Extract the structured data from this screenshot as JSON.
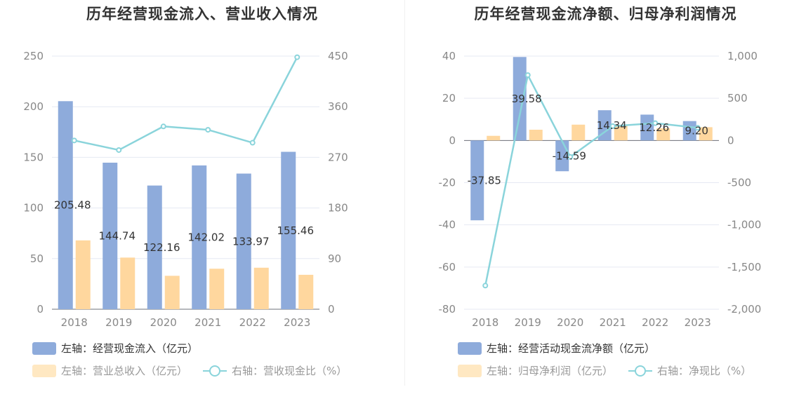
{
  "colors": {
    "bar_primary": "#8eabdb",
    "bar_secondary": "#ffd79e",
    "line": "#8ad4db",
    "axis_text": "#888888",
    "grid": "#e6e9f3",
    "label_text": "#333333"
  },
  "chart_data": [
    {
      "type": "bar",
      "title": "历年经营现金流入、营业收入情况",
      "categories": [
        "2018",
        "2019",
        "2020",
        "2021",
        "2022",
        "2023"
      ],
      "y_left": {
        "ylim": [
          0,
          250
        ],
        "ticks": [
          "0",
          "50",
          "100",
          "150",
          "200",
          "250"
        ]
      },
      "y_right": {
        "ylim": [
          0,
          450
        ],
        "ticks": [
          "0",
          "90",
          "180",
          "270",
          "360",
          "450"
        ]
      },
      "series": [
        {
          "name": "左轴：经营现金流入（亿元）",
          "kind": "bar",
          "axis": "left",
          "values": [
            205.48,
            144.74,
            122.16,
            142.02,
            133.97,
            155.46
          ],
          "labels": [
            "205.48",
            "144.74",
            "122.16",
            "142.02",
            "133.97",
            "155.46"
          ]
        },
        {
          "name": "左轴：营业总收入（亿元）",
          "kind": "bar",
          "axis": "left",
          "values": [
            68,
            51,
            33,
            40,
            41,
            34
          ]
        },
        {
          "name": "右轴：营收现金比（%）",
          "kind": "line",
          "axis": "right",
          "values": [
            300,
            283,
            325,
            319,
            296,
            448
          ]
        }
      ]
    },
    {
      "type": "bar",
      "title": "历年经营现金流净额、归母净利润情况",
      "categories": [
        "2018",
        "2019",
        "2020",
        "2021",
        "2022",
        "2023"
      ],
      "y_left": {
        "ylim": [
          -80,
          40
        ],
        "ticks": [
          "-80",
          "-60",
          "-40",
          "-20",
          "0",
          "20",
          "40"
        ]
      },
      "y_right": {
        "ylim": [
          -2000,
          1000
        ],
        "ticks": [
          "-2,000",
          "-1,500",
          "-1,000",
          "-500",
          "0",
          "500",
          "1,000"
        ]
      },
      "series": [
        {
          "name": "左轴：经营活动现金流净额（亿元）",
          "kind": "bar",
          "axis": "left",
          "values": [
            -37.85,
            39.58,
            -14.59,
            14.34,
            12.26,
            9.2
          ],
          "labels": [
            "-37.85",
            "39.58",
            "-14.59",
            "14.34",
            "12.26",
            "9.20"
          ]
        },
        {
          "name": "左轴：归母净利润（亿元）",
          "kind": "bar",
          "axis": "left",
          "values": [
            2.2,
            5.1,
            7.5,
            7.0,
            5.8,
            6.3
          ]
        },
        {
          "name": "右轴：净现比（%）",
          "kind": "line",
          "axis": "right",
          "values": [
            -1720,
            775,
            -195,
            170,
            205,
            150
          ]
        }
      ]
    }
  ]
}
